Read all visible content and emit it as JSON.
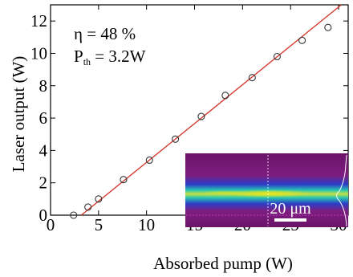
{
  "chart_data": {
    "type": "scatter",
    "xlabel": "Absorbed pump (W)",
    "ylabel": "Laser output (W)",
    "xlim": [
      0,
      31
    ],
    "ylim": [
      0,
      13
    ],
    "x_ticks": [
      0,
      5,
      10,
      15,
      20,
      25,
      30
    ],
    "y_ticks": [
      0,
      2,
      4,
      6,
      8,
      10,
      12
    ],
    "grid": false,
    "series": [
      {
        "marker": "circle-open",
        "color": "#333333",
        "points": [
          {
            "x": 2.4,
            "y": 0.0
          },
          {
            "x": 3.9,
            "y": 0.5
          },
          {
            "x": 5.0,
            "y": 1.0
          },
          {
            "x": 7.6,
            "y": 2.2
          },
          {
            "x": 10.3,
            "y": 3.4
          },
          {
            "x": 13.0,
            "y": 4.7
          },
          {
            "x": 15.7,
            "y": 6.1
          },
          {
            "x": 18.2,
            "y": 7.4
          },
          {
            "x": 21.0,
            "y": 8.5
          },
          {
            "x": 23.6,
            "y": 9.8
          },
          {
            "x": 26.2,
            "y": 10.8
          },
          {
            "x": 28.9,
            "y": 11.6
          }
        ]
      }
    ],
    "fit_line": {
      "slope": 0.48,
      "x_intercept": 3.2,
      "color": "#d43a2f"
    },
    "annotations": {
      "eta": "η = 48 %",
      "pth_main": "P",
      "pth_sub": "th",
      "pth_value": " = 3.2W"
    },
    "inset": {
      "scale_label": "20 μm",
      "colors": {
        "background": "#7a1a78",
        "beam_core": "#e8e020",
        "beam_mid": "#20c8a0",
        "beam_edge": "#2040d8",
        "profile": "#ffffff"
      }
    }
  }
}
